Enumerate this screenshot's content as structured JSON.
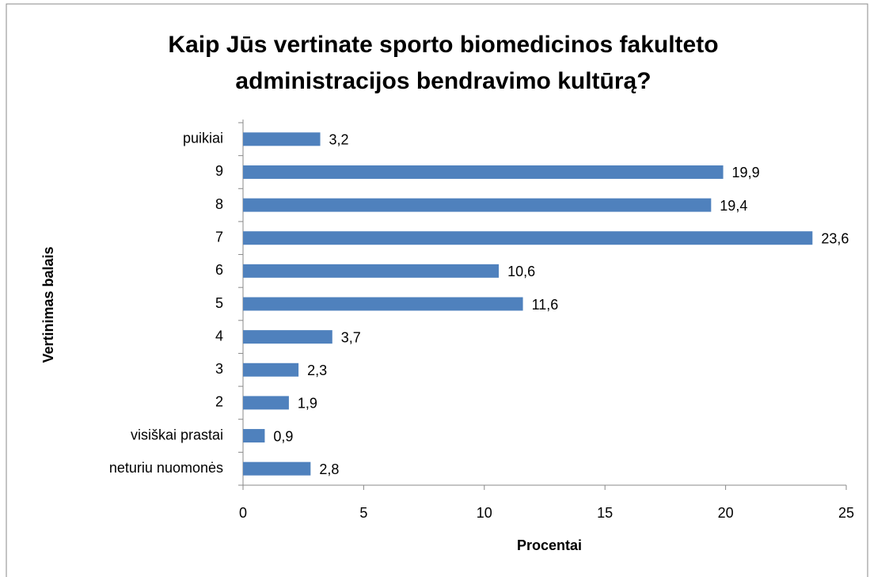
{
  "chart_data": {
    "type": "hbar",
    "title": [
      "Kaip Jūs vertinate sporto biomedicinos fakulteto",
      "administracijos bendravimo kultūrą?"
    ],
    "xlabel": "Procentai",
    "ylabel": "Vertinimas balais",
    "categories": [
      "puikiai",
      "9",
      "8",
      "7",
      "6",
      "5",
      "4",
      "3",
      "2",
      "visiškai prastai",
      "neturiu nuomonės"
    ],
    "values": [
      3.2,
      19.9,
      19.4,
      23.6,
      10.6,
      11.6,
      3.7,
      2.3,
      1.9,
      0.9,
      2.8
    ],
    "value_labels": [
      "3,2",
      "19,9",
      "19,4",
      "23,6",
      "10,6",
      "11,6",
      "3,7",
      "2,3",
      "1,9",
      "0,9",
      "2,8"
    ],
    "color": "#4f81bd",
    "xlim": [
      0,
      25
    ],
    "xticks": [
      0,
      5,
      10,
      15,
      20,
      25
    ],
    "grid": false
  }
}
